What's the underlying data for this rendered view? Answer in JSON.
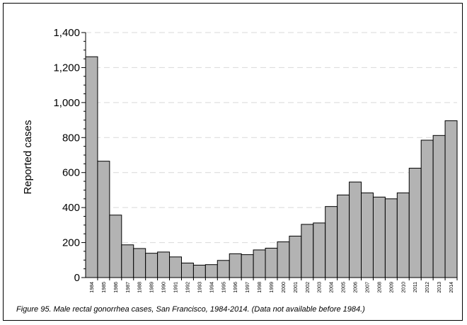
{
  "caption": "Figure 95.  Male rectal gonorrhea cases, San Francisco, 1984-2014.  (Data not available before 1984.)",
  "chart_data": {
    "type": "bar",
    "ylabel": "Reported cases",
    "xlabel": "",
    "ylim": [
      0,
      1400
    ],
    "yticks": [
      "0",
      "200",
      "400",
      "600",
      "800",
      "1,000",
      "1,200",
      "1,400"
    ],
    "grid": "horizontal dashed",
    "bar_color": "#b3b3b3",
    "categories": [
      "1984",
      "1985",
      "1986",
      "1987",
      "1988",
      "1989",
      "1990",
      "1991",
      "1992",
      "1993",
      "1994",
      "1995",
      "1996",
      "1997",
      "1998",
      "1999",
      "2000",
      "2001",
      "2002",
      "2003",
      "2004",
      "2005",
      "2006",
      "2007",
      "2008",
      "2009",
      "2010",
      "2011",
      "2012",
      "2013",
      "2014"
    ],
    "values": [
      1262,
      665,
      357,
      187,
      166,
      139,
      146,
      118,
      83,
      71,
      74,
      98,
      136,
      131,
      158,
      168,
      204,
      237,
      304,
      312,
      406,
      472,
      546,
      484,
      460,
      450,
      484,
      625,
      785,
      812,
      896
    ]
  }
}
